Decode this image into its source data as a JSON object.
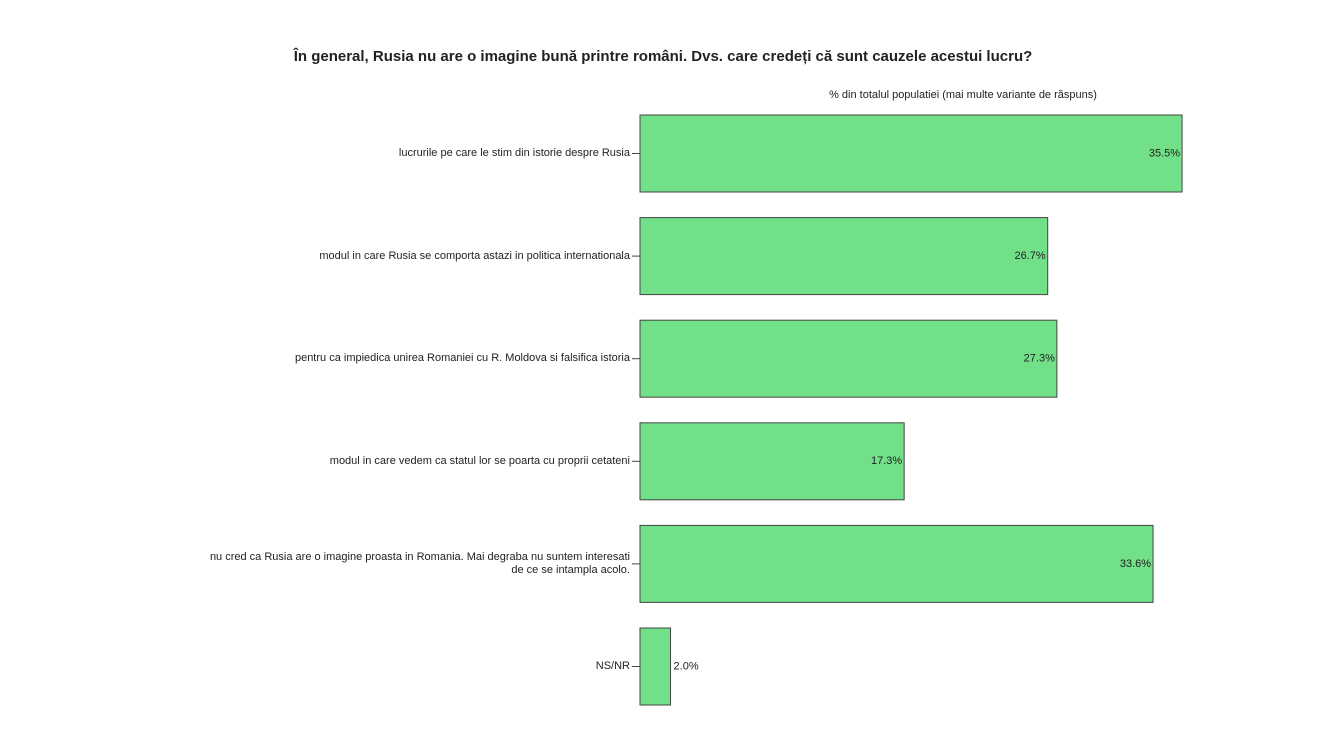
{
  "chart_data": {
    "type": "bar",
    "orientation": "horizontal",
    "title": "În general, Rusia nu are o imagine bună printre români. Dvs. care credeți că sunt cauzele acestui lucru?",
    "subtitle": "% din totalul populatiei (mai multe variante de răspuns)",
    "categories": [
      "lucrurile pe care le stim din istorie despre Rusia",
      "modul in care Rusia se comporta astazi in politica internationala",
      "pentru ca impiedica unirea Romaniei cu R. Moldova si falsifica istoria",
      "modul in care vedem ca statul lor se poarta cu proprii cetateni",
      "nu cred ca Rusia are o imagine proasta in Romania. Mai degraba nu suntem interesati\nde ce se intampla acolo.",
      "NS/NR"
    ],
    "values": [
      35.5,
      26.7,
      27.3,
      17.3,
      33.6,
      2.0
    ],
    "value_labels": [
      "35.5%",
      "26.7%",
      "27.3%",
      "17.3%",
      "33.6%",
      "2.0%"
    ],
    "color": "#71e088"
  }
}
